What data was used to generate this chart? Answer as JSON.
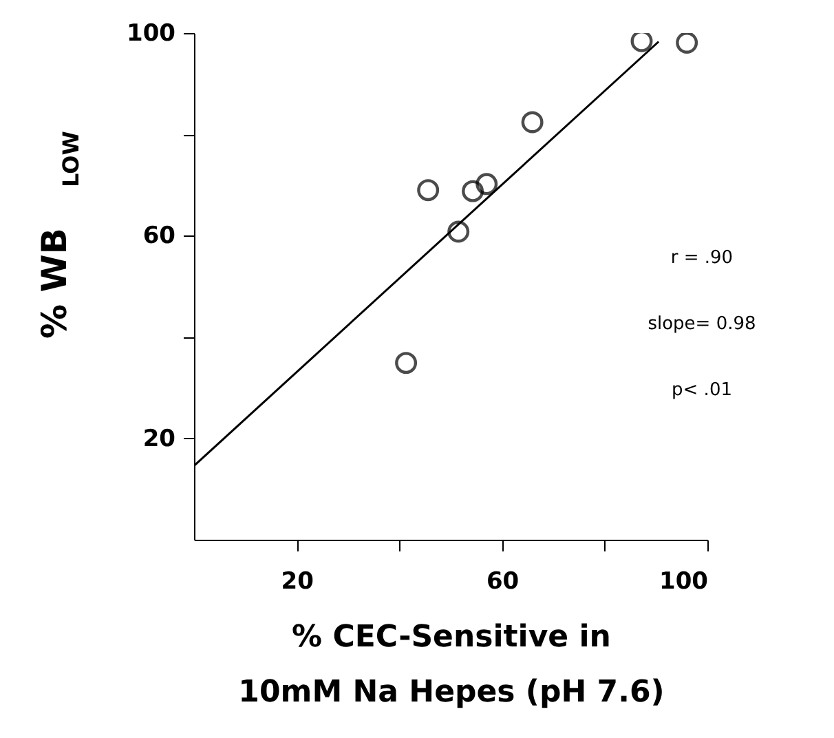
{
  "chart_data": {
    "type": "scatter",
    "xlabel": "% CEC-Sensitive in\n10mM Na Hepes (pH 7.6)",
    "ylabel": "% WB$_{LOW}$",
    "xlim": [
      0,
      100
    ],
    "ylim": [
      0,
      100
    ],
    "xticks": [
      20,
      {
        "value": 40,
        "label": null
      },
      60,
      {
        "value": 80,
        "label": null
      },
      100
    ],
    "yticks": [
      20,
      {
        "value": 40,
        "label": null
      },
      60,
      {
        "value": 80,
        "label": null
      },
      100
    ],
    "grid": false,
    "annotations": [
      "r = .90",
      "slope= 0.98",
      "p< .01"
    ],
    "series": [
      {
        "color": "#000000",
        "marker": "circle",
        "x": [
          87.2,
          96.0,
          65.9,
          45.6,
          54.3,
          57.0,
          51.5,
          41.3
        ],
        "values": [
          98.4,
          98.1,
          82.4,
          69.0,
          68.8,
          70.2,
          60.8,
          34.9
        ]
      },
      {
        "type": "line",
        "color": "#000000",
        "line_style": "solid",
        "marker": "none",
        "x": [
          0,
          90.5
        ],
        "values": [
          14.6,
          98.3
        ]
      }
    ]
  }
}
